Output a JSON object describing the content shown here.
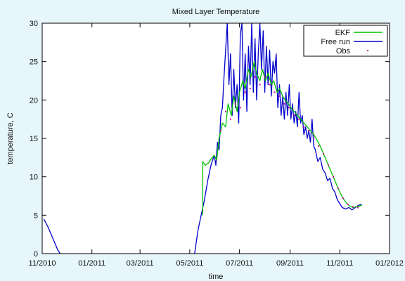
{
  "chart_data": {
    "type": "line",
    "title": "Mixed Layer Temperature",
    "xlabel": "time",
    "ylabel": "temperature, C",
    "x_ticks": [
      "11/2010",
      "01/2011",
      "03/2011",
      "05/2011",
      "07/2011",
      "09/2011",
      "11/2011",
      "01/2012"
    ],
    "y_ticks": [
      "0",
      "5",
      "10",
      "15",
      "20",
      "25",
      "30"
    ],
    "xlim": [
      "2010-11-01",
      "2012-01-01"
    ],
    "ylim": [
      0,
      30
    ],
    "grid": false,
    "legend_position": "top-right",
    "series": [
      {
        "name": "EKF",
        "color": "#00c000",
        "style": "line",
        "points": [
          [
            "2011-05-17",
            5.0
          ],
          [
            "2011-05-17",
            12.0
          ],
          [
            "2011-05-20",
            11.5
          ],
          [
            "2011-05-24",
            11.8
          ],
          [
            "2011-05-27",
            12.3
          ],
          [
            "2011-05-31",
            12.8
          ],
          [
            "2011-06-03",
            12.2
          ],
          [
            "2011-06-06",
            15.0
          ],
          [
            "2011-06-10",
            17.0
          ],
          [
            "2011-06-14",
            16.5
          ],
          [
            "2011-06-17",
            19.5
          ],
          [
            "2011-06-21",
            18.0
          ],
          [
            "2011-06-24",
            20.5
          ],
          [
            "2011-06-28",
            18.5
          ],
          [
            "2011-07-01",
            21.0
          ],
          [
            "2011-07-05",
            22.5
          ],
          [
            "2011-07-08",
            21.5
          ],
          [
            "2011-07-12",
            24.0
          ],
          [
            "2011-07-15",
            23.0
          ],
          [
            "2011-07-19",
            25.0
          ],
          [
            "2011-07-22",
            23.5
          ],
          [
            "2011-07-26",
            22.5
          ],
          [
            "2011-07-29",
            24.0
          ],
          [
            "2011-08-02",
            22.5
          ],
          [
            "2011-08-05",
            23.5
          ],
          [
            "2011-08-09",
            22.0
          ],
          [
            "2011-08-12",
            22.5
          ],
          [
            "2011-08-16",
            21.0
          ],
          [
            "2011-08-19",
            21.5
          ],
          [
            "2011-08-23",
            20.5
          ],
          [
            "2011-08-26",
            20.0
          ],
          [
            "2011-08-30",
            19.5
          ],
          [
            "2011-09-02",
            19.0
          ],
          [
            "2011-09-06",
            18.5
          ],
          [
            "2011-09-10",
            18.0
          ],
          [
            "2011-09-14",
            17.5
          ],
          [
            "2011-09-18",
            17.0
          ],
          [
            "2011-09-22",
            16.5
          ],
          [
            "2011-09-26",
            16.0
          ],
          [
            "2011-09-30",
            15.5
          ],
          [
            "2011-10-04",
            14.8
          ],
          [
            "2011-10-08",
            14.0
          ],
          [
            "2011-10-12",
            13.0
          ],
          [
            "2011-10-16",
            12.0
          ],
          [
            "2011-10-20",
            11.0
          ],
          [
            "2011-10-24",
            10.0
          ],
          [
            "2011-10-28",
            9.0
          ],
          [
            "2011-11-01",
            8.0
          ],
          [
            "2011-11-05",
            7.2
          ],
          [
            "2011-11-09",
            6.6
          ],
          [
            "2011-11-13",
            6.2
          ],
          [
            "2011-11-17",
            6.0
          ],
          [
            "2011-11-21",
            6.1
          ],
          [
            "2011-11-25",
            6.2
          ],
          [
            "2011-11-28",
            6.3
          ]
        ]
      },
      {
        "name": "Free run",
        "color": "#0000cc",
        "style": "line",
        "points": [
          [
            "2010-11-03",
            4.5
          ],
          [
            "2010-11-08",
            3.5
          ],
          [
            "2010-11-14",
            2.0
          ],
          [
            "2010-11-20",
            0.5
          ],
          [
            "2010-11-23",
            0.0
          ],
          null,
          [
            "2011-05-07",
            0.0
          ],
          [
            "2011-05-11",
            3.0
          ],
          [
            "2011-05-15",
            5.0
          ],
          [
            "2011-05-19",
            7.0
          ],
          [
            "2011-05-23",
            9.5
          ],
          [
            "2011-05-27",
            11.5
          ],
          [
            "2011-05-31",
            12.8
          ],
          [
            "2011-06-02",
            11.5
          ],
          [
            "2011-06-04",
            14.5
          ],
          [
            "2011-06-06",
            13.5
          ],
          [
            "2011-06-08",
            18.0
          ],
          [
            "2011-06-10",
            19.0
          ],
          [
            "2011-06-12",
            23.0
          ],
          [
            "2011-06-14",
            26.5
          ],
          [
            "2011-06-16",
            30.0
          ],
          [
            "2011-06-18",
            22.0
          ],
          [
            "2011-06-20",
            26.0
          ],
          [
            "2011-06-22",
            18.0
          ],
          [
            "2011-06-24",
            24.0
          ],
          [
            "2011-06-26",
            19.0
          ],
          [
            "2011-06-28",
            22.0
          ],
          [
            "2011-06-30",
            17.0
          ],
          [
            "2011-07-02",
            28.5
          ],
          [
            "2011-07-04",
            30.0
          ],
          [
            "2011-07-06",
            20.0
          ],
          [
            "2011-07-08",
            26.0
          ],
          [
            "2011-07-10",
            18.5
          ],
          [
            "2011-07-12",
            27.0
          ],
          [
            "2011-07-14",
            22.0
          ],
          [
            "2011-07-16",
            30.0
          ],
          [
            "2011-07-18",
            21.0
          ],
          [
            "2011-07-20",
            28.0
          ],
          [
            "2011-07-22",
            20.0
          ],
          [
            "2011-07-24",
            26.0
          ],
          [
            "2011-07-26",
            30.0
          ],
          [
            "2011-07-28",
            24.0
          ],
          [
            "2011-07-30",
            29.0
          ],
          [
            "2011-08-01",
            21.0
          ],
          [
            "2011-08-03",
            27.0
          ],
          [
            "2011-08-05",
            22.0
          ],
          [
            "2011-08-07",
            26.5
          ],
          [
            "2011-08-09",
            20.5
          ],
          [
            "2011-08-11",
            25.0
          ],
          [
            "2011-08-13",
            23.5
          ],
          [
            "2011-08-15",
            26.0
          ],
          [
            "2011-08-17",
            19.0
          ],
          [
            "2011-08-19",
            22.0
          ],
          [
            "2011-08-21",
            18.0
          ],
          [
            "2011-08-23",
            20.5
          ],
          [
            "2011-08-25",
            17.5
          ],
          [
            "2011-08-27",
            21.0
          ],
          [
            "2011-08-29",
            18.0
          ],
          [
            "2011-08-31",
            22.0
          ],
          [
            "2011-09-02",
            17.5
          ],
          [
            "2011-09-04",
            19.5
          ],
          [
            "2011-09-06",
            17.0
          ],
          [
            "2011-09-08",
            18.5
          ],
          [
            "2011-09-10",
            16.5
          ],
          [
            "2011-09-12",
            21.0
          ],
          [
            "2011-09-14",
            17.0
          ],
          [
            "2011-09-16",
            18.0
          ],
          [
            "2011-09-18",
            15.5
          ],
          [
            "2011-09-20",
            16.5
          ],
          [
            "2011-09-22",
            15.0
          ],
          [
            "2011-09-24",
            16.0
          ],
          [
            "2011-09-26",
            14.5
          ],
          [
            "2011-09-28",
            17.5
          ],
          [
            "2011-09-30",
            14.0
          ],
          [
            "2011-10-02",
            13.5
          ],
          [
            "2011-10-05",
            12.0
          ],
          [
            "2011-10-08",
            12.5
          ],
          [
            "2011-10-11",
            11.0
          ],
          [
            "2011-10-14",
            10.5
          ],
          [
            "2011-10-17",
            9.5
          ],
          [
            "2011-10-20",
            9.8
          ],
          [
            "2011-10-23",
            8.5
          ],
          [
            "2011-10-26",
            8.0
          ],
          [
            "2011-10-29",
            7.0
          ],
          [
            "2011-11-01",
            6.5
          ],
          [
            "2011-11-04",
            6.0
          ],
          [
            "2011-11-08",
            5.8
          ],
          [
            "2011-11-12",
            6.0
          ],
          [
            "2011-11-16",
            5.7
          ],
          [
            "2011-11-20",
            6.0
          ],
          [
            "2011-11-24",
            6.3
          ],
          [
            "2011-11-28",
            6.4
          ]
        ]
      },
      {
        "name": "Obs",
        "color": "#cc0099",
        "style": "points",
        "points": [
          [
            "2011-06-08",
            16.0
          ],
          [
            "2011-06-14",
            18.5
          ],
          [
            "2011-06-20",
            17.5
          ],
          [
            "2011-06-26",
            19.5
          ],
          [
            "2011-07-02",
            19.0
          ],
          [
            "2011-07-08",
            21.0
          ],
          [
            "2011-07-14",
            21.5
          ],
          [
            "2011-07-20",
            23.0
          ],
          [
            "2011-07-26",
            22.0
          ],
          [
            "2011-08-01",
            23.0
          ],
          [
            "2011-08-07",
            22.0
          ],
          [
            "2011-08-13",
            21.0
          ],
          [
            "2011-08-19",
            20.5
          ],
          [
            "2011-08-25",
            19.5
          ],
          [
            "2011-08-31",
            19.0
          ],
          [
            "2011-09-06",
            18.0
          ],
          [
            "2011-09-12",
            17.5
          ],
          [
            "2011-09-18",
            16.5
          ],
          [
            "2011-09-24",
            16.0
          ],
          [
            "2011-09-30",
            15.0
          ],
          [
            "2011-10-06",
            14.0
          ],
          [
            "2011-10-12",
            13.0
          ],
          [
            "2011-10-18",
            11.5
          ],
          [
            "2011-10-24",
            10.0
          ],
          [
            "2011-10-30",
            8.5
          ],
          [
            "2011-11-05",
            7.2
          ],
          [
            "2011-11-11",
            6.4
          ],
          [
            "2011-11-17",
            6.1
          ],
          [
            "2011-11-23",
            6.0
          ]
        ]
      }
    ]
  }
}
